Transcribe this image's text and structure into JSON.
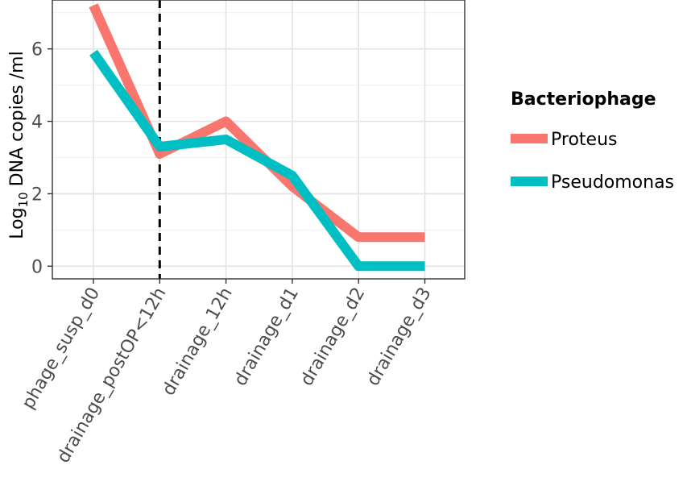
{
  "chart_data": {
    "type": "line",
    "categories": [
      "phage_susp_d0",
      "drainage_postOP<12h",
      "drainage_12h",
      "drainage_d1",
      "drainage_d2",
      "drainage_d3"
    ],
    "ylabel_base": "Log",
    "ylabel_sub": "10",
    "ylabel_rest": " DNA copies /ml",
    "ylim": [
      -0.35,
      7.35
    ],
    "y_ticks": [
      0,
      2,
      4,
      6
    ],
    "grid": true,
    "vline_at_category": 1,
    "legend": {
      "title": "Bacteriophage",
      "position": "right"
    },
    "series": [
      {
        "name": "Proteus",
        "color": "#F8766D",
        "values": [
          7.2,
          3.1,
          4.0,
          2.2,
          0.8,
          0.8
        ]
      },
      {
        "name": "Pseudomonas",
        "color": "#00BFC4",
        "values": [
          5.9,
          3.3,
          3.5,
          2.5,
          0.0,
          0.0
        ]
      }
    ]
  }
}
